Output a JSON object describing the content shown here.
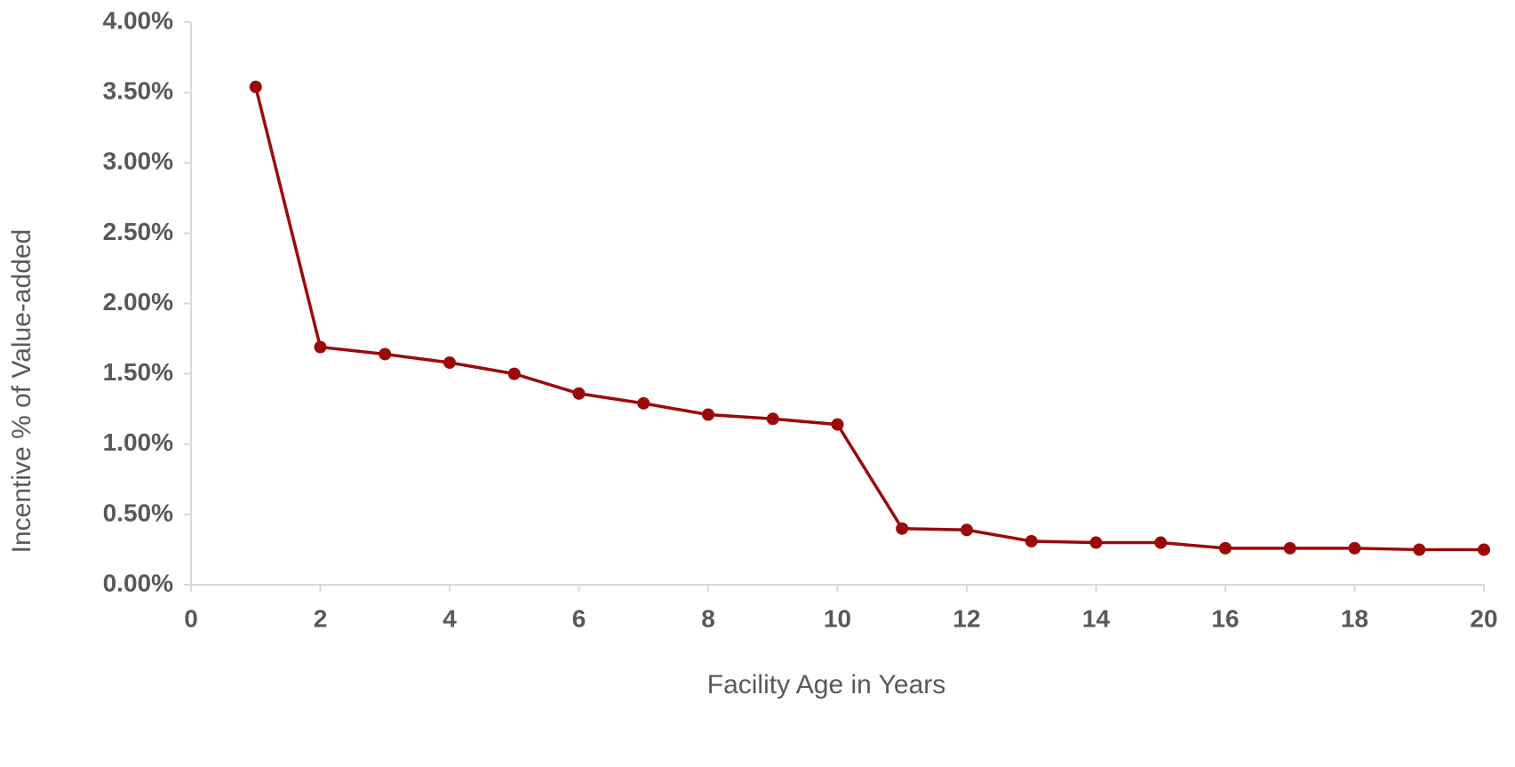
{
  "chart_data": {
    "type": "line",
    "xlabel": "Facility Age in Years",
    "ylabel": "Incentive % of Value-added",
    "x": [
      1,
      2,
      3,
      4,
      5,
      6,
      7,
      8,
      9,
      10,
      11,
      12,
      13,
      14,
      15,
      16,
      17,
      18,
      19,
      20
    ],
    "series": [
      {
        "name": "Incentive",
        "color": "#9b0a0a",
        "values": [
          3.54,
          1.69,
          1.64,
          1.58,
          1.5,
          1.36,
          1.29,
          1.21,
          1.18,
          1.14,
          0.4,
          0.39,
          0.31,
          0.3,
          0.3,
          0.26,
          0.26,
          0.26,
          0.25,
          0.25
        ]
      }
    ],
    "xlim": [
      0,
      20
    ],
    "xticks": [
      0,
      2,
      4,
      6,
      8,
      10,
      12,
      14,
      16,
      18,
      20
    ],
    "ylim": [
      0,
      4
    ],
    "yticks": [
      {
        "value": 0,
        "label": "0.00%"
      },
      {
        "value": 0.5,
        "label": "0.50%"
      },
      {
        "value": 1,
        "label": "1.00%"
      },
      {
        "value": 1.5,
        "label": "1.50%"
      },
      {
        "value": 2,
        "label": "2.00%"
      },
      {
        "value": 2.5,
        "label": "2.50%"
      },
      {
        "value": 3,
        "label": "3.00%"
      },
      {
        "value": 3.5,
        "label": "3.50%"
      },
      {
        "value": 4,
        "label": "4.00%"
      }
    ],
    "grid": false
  }
}
